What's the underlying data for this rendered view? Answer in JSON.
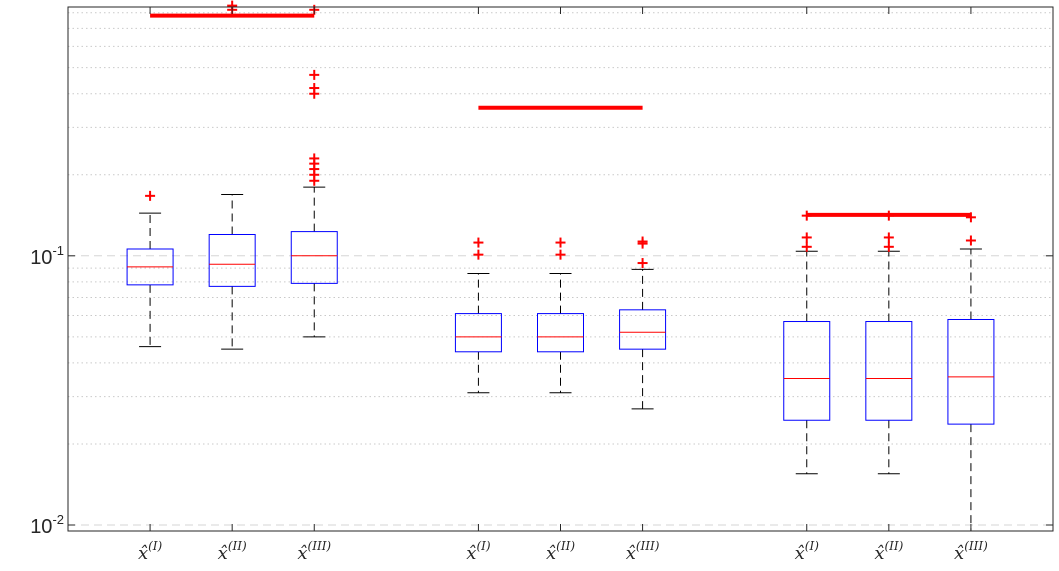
{
  "chart_data": {
    "type": "box",
    "yscale": "log",
    "ylim": [
      0.0095,
      0.84
    ],
    "yticks": [
      {
        "value": 0.01,
        "base": "10",
        "exp": "-2"
      },
      {
        "value": 0.1,
        "base": "10",
        "exp": "-1"
      }
    ],
    "grid": {
      "major": "dashed",
      "minor": "dotted"
    },
    "colors": {
      "box": "#0000ff",
      "median": "#ff0000",
      "whisker": "#000000",
      "outlier": "#ff0000",
      "reference_line": "#ff0000",
      "axes": "#262626"
    },
    "categories": [
      {
        "base": "x̂",
        "sup": "(I)"
      },
      {
        "base": "x̂",
        "sup": "(II)"
      },
      {
        "base": "x̂",
        "sup": "(III)"
      },
      {
        "base": "x̂",
        "sup": "(I)"
      },
      {
        "base": "x̂",
        "sup": "(II)"
      },
      {
        "base": "x̂",
        "sup": "(III)"
      },
      {
        "base": "x̂",
        "sup": "(I)"
      },
      {
        "base": "x̂",
        "sup": "(II)"
      },
      {
        "base": "x̂",
        "sup": "(III)"
      }
    ],
    "x_positions": [
      1,
      2,
      3,
      5,
      6,
      7,
      9,
      10,
      11
    ],
    "xlim": [
      0,
      12
    ],
    "boxes": [
      {
        "whisker_low": 0.046,
        "q1": 0.078,
        "median": 0.091,
        "q3": 0.106,
        "whisker_high": 0.144,
        "outliers": [
          0.167
        ]
      },
      {
        "whisker_low": 0.045,
        "q1": 0.077,
        "median": 0.093,
        "q3": 0.12,
        "whisker_high": 0.169,
        "outliers": [
          0.82,
          0.85
        ]
      },
      {
        "whisker_low": 0.05,
        "q1": 0.079,
        "median": 0.1,
        "q3": 0.123,
        "whisker_high": 0.18,
        "outliers": [
          0.19,
          0.2,
          0.21,
          0.22,
          0.23,
          0.4,
          0.42,
          0.47,
          0.82
        ]
      },
      {
        "whisker_low": 0.031,
        "q1": 0.044,
        "median": 0.05,
        "q3": 0.061,
        "whisker_high": 0.086,
        "outliers": [
          0.101,
          0.112
        ]
      },
      {
        "whisker_low": 0.031,
        "q1": 0.044,
        "median": 0.05,
        "q3": 0.061,
        "whisker_high": 0.086,
        "outliers": [
          0.101,
          0.112
        ]
      },
      {
        "whisker_low": 0.027,
        "q1": 0.045,
        "median": 0.052,
        "q3": 0.063,
        "whisker_high": 0.089,
        "outliers": [
          0.094,
          0.111,
          0.113
        ]
      },
      {
        "whisker_low": 0.0155,
        "q1": 0.0245,
        "median": 0.035,
        "q3": 0.057,
        "whisker_high": 0.104,
        "outliers": [
          0.108,
          0.117,
          0.141
        ]
      },
      {
        "whisker_low": 0.0155,
        "q1": 0.0245,
        "median": 0.035,
        "q3": 0.057,
        "whisker_high": 0.104,
        "outliers": [
          0.108,
          0.117,
          0.141
        ]
      },
      {
        "whisker_low": 0.0095,
        "q1": 0.0237,
        "median": 0.0355,
        "q3": 0.058,
        "whisker_high": 0.106,
        "outliers": [
          0.114,
          0.139
        ]
      }
    ],
    "reference_lines": [
      {
        "x_from": 1,
        "x_to": 3,
        "value": 0.78
      },
      {
        "x_from": 5,
        "x_to": 7,
        "value": 0.355
      },
      {
        "x_from": 9,
        "x_to": 11,
        "value": 0.142
      }
    ]
  }
}
